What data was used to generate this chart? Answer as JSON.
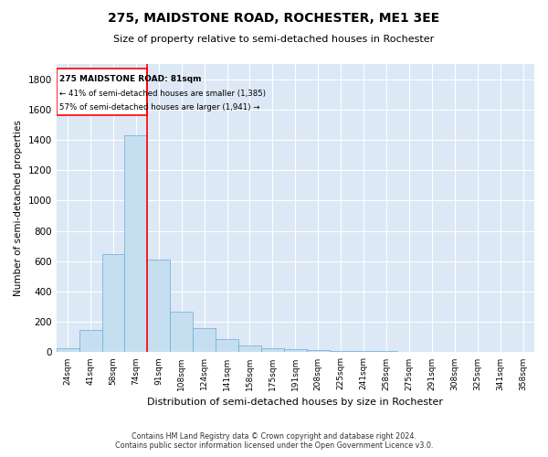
{
  "title1": "275, MAIDSTONE ROAD, ROCHESTER, ME1 3EE",
  "title2": "Size of property relative to semi-detached houses in Rochester",
  "xlabel": "Distribution of semi-detached houses by size in Rochester",
  "ylabel": "Number of semi-detached properties",
  "categories": [
    "24sqm",
    "41sqm",
    "58sqm",
    "74sqm",
    "91sqm",
    "108sqm",
    "124sqm",
    "141sqm",
    "158sqm",
    "175sqm",
    "191sqm",
    "208sqm",
    "225sqm",
    "241sqm",
    "258sqm",
    "275sqm",
    "291sqm",
    "308sqm",
    "325sqm",
    "341sqm",
    "358sqm"
  ],
  "values": [
    25,
    150,
    650,
    1430,
    610,
    270,
    160,
    85,
    42,
    25,
    18,
    14,
    10,
    8,
    6,
    5,
    4,
    4,
    3,
    3,
    3
  ],
  "bar_color": "#c5dff0",
  "bar_edge_color": "#6aaad4",
  "background_color": "#dce8f5",
  "red_line_bar_index": 4,
  "annotation_title": "275 MAIDSTONE ROAD: 81sqm",
  "annotation_line1": "← 41% of semi-detached houses are smaller (1,385)",
  "annotation_line2": "57% of semi-detached houses are larger (1,941) →",
  "footer1": "Contains HM Land Registry data © Crown copyright and database right 2024.",
  "footer2": "Contains public sector information licensed under the Open Government Licence v3.0.",
  "ylim": [
    0,
    1900
  ],
  "yticks": [
    0,
    200,
    400,
    600,
    800,
    1000,
    1200,
    1400,
    1600,
    1800
  ]
}
